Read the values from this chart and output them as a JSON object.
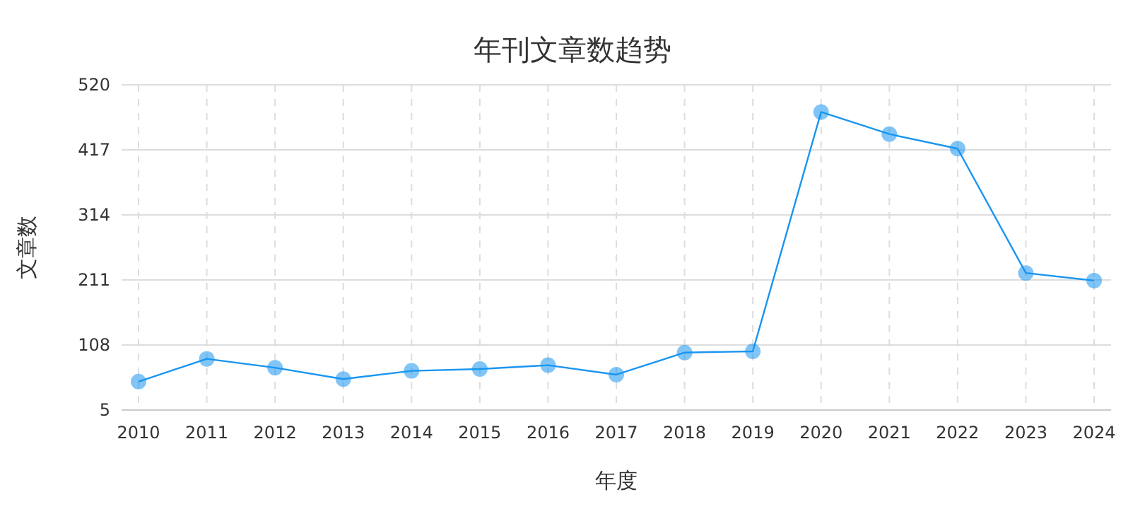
{
  "chart_data": {
    "type": "line",
    "title": "年刊文章数趋势",
    "xlabel": "年度",
    "ylabel": "文章数",
    "categories": [
      "2010",
      "2011",
      "2012",
      "2013",
      "2014",
      "2015",
      "2016",
      "2017",
      "2018",
      "2019",
      "2020",
      "2021",
      "2022",
      "2023",
      "2024"
    ],
    "series": [
      {
        "color": "#1a95f0",
        "values": [
          50,
          86,
          72,
          54,
          67,
          70,
          76,
          61,
          96,
          98,
          477,
          442,
          419,
          222,
          210
        ]
      }
    ],
    "ylim": [
      5,
      520
    ],
    "yticks": [
      5,
      108,
      211,
      314,
      417,
      520
    ],
    "grid": true,
    "marker": "circle",
    "line_style": "solid"
  }
}
